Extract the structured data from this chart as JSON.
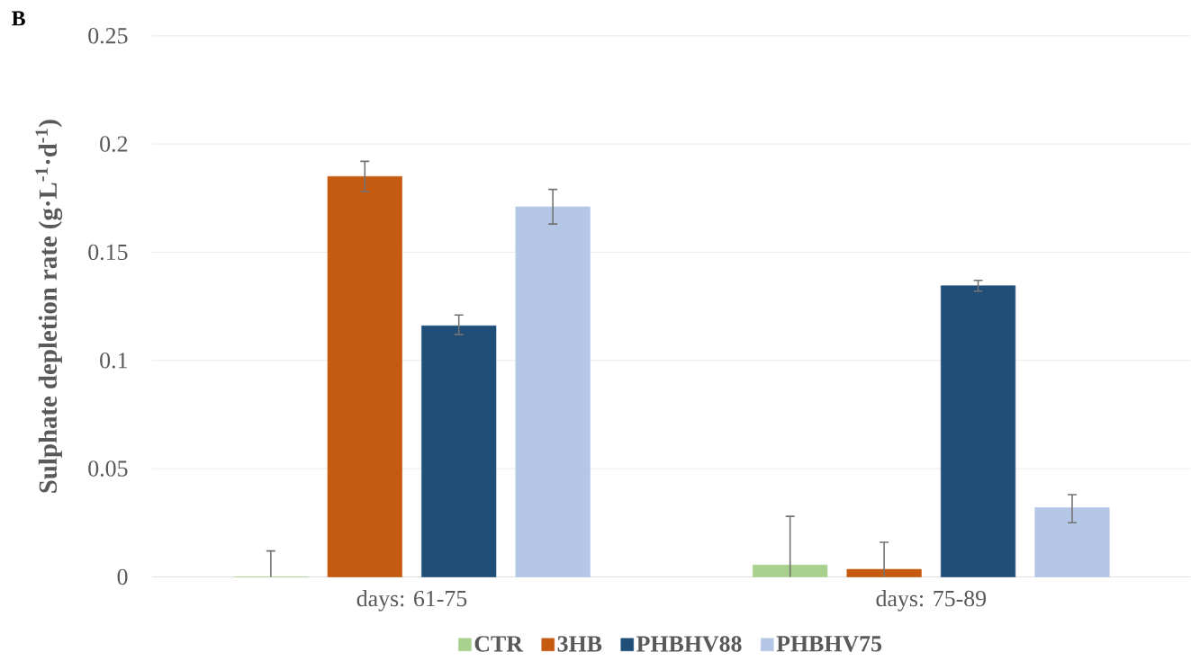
{
  "chart_data": {
    "type": "bar",
    "title": "B",
    "ylabel": "**Sulphate depletion rate (g·L$^{-1}$·d$^{-1}$)**",
    "categories": [
      "days: 61-75",
      "days: 75-89"
    ],
    "series": [
      {
        "name": "CTR",
        "color": "#a9d18e",
        "values": [
          0,
          0.0055
        ],
        "errors": [
          [
            0,
            0.012
          ],
          [
            0,
            0.028
          ]
        ]
      },
      {
        "name": "3HB",
        "color": "#c55a11",
        "values": [
          0.185,
          0.0035
        ],
        "errors": [
          [
            0.178,
            0.192
          ],
          [
            0,
            0.016
          ]
        ]
      },
      {
        "name": "PHBHV88",
        "color": "#1f4e79",
        "values": [
          0.116,
          0.1345
        ],
        "errors": [
          [
            0.112,
            0.121
          ],
          [
            0.132,
            0.137
          ]
        ]
      },
      {
        "name": "PHBHV75",
        "color": "#b4c7e7",
        "values": [
          0.171,
          0.032
        ],
        "errors": [
          [
            0.163,
            0.179
          ],
          [
            0.025,
            0.038
          ]
        ]
      }
    ],
    "ylim": [
      0,
      0.25
    ],
    "yticks": [
      0,
      0.05,
      0.1,
      0.15,
      0.2,
      0.25
    ],
    "grid": "y",
    "legend": "bottom"
  }
}
